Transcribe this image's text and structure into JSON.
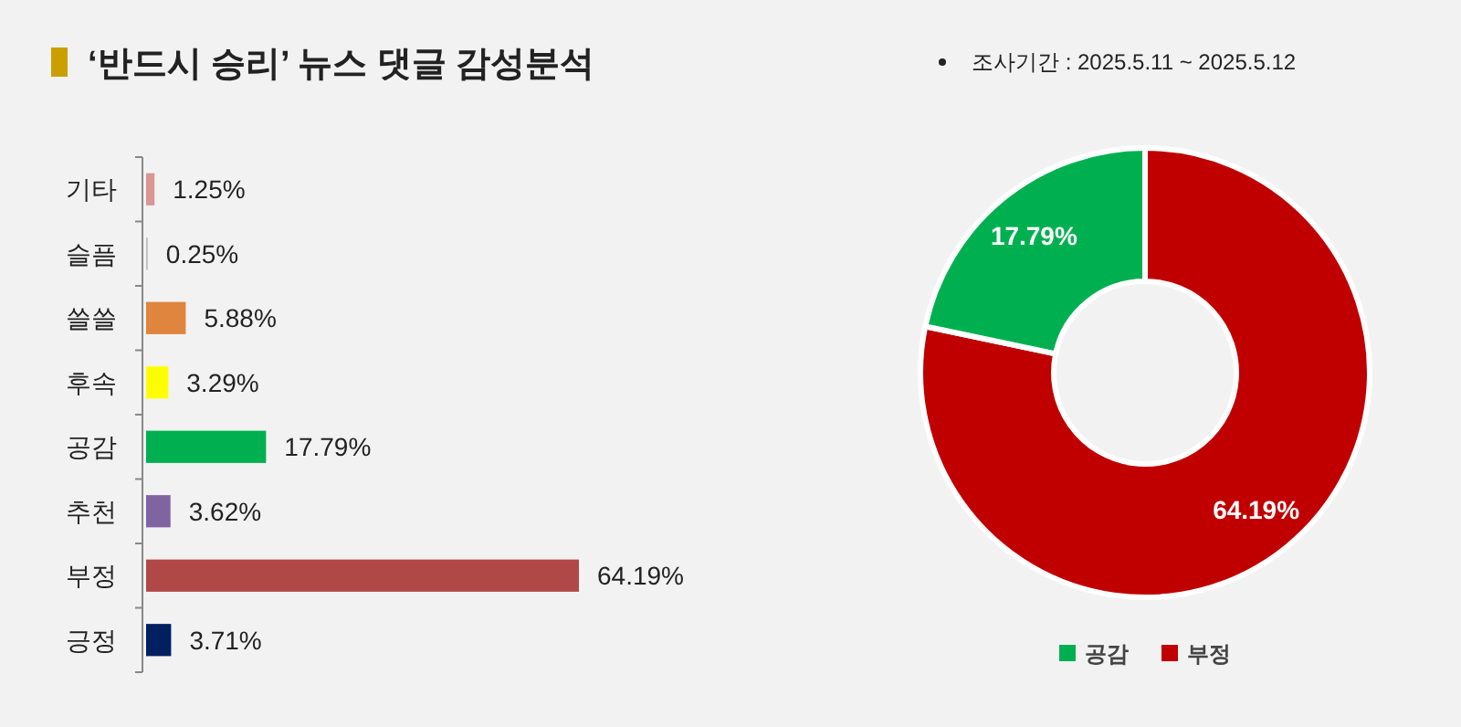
{
  "chart_data": [
    {
      "type": "bar",
      "orientation": "horizontal",
      "title": "‘반드시 승리’ 뉴스 댓글 감성분석",
      "annotations": [
        "조사기간 : 2025.5.11 ~ 2025.5.12"
      ],
      "categories": [
        "기타",
        "슬픔",
        "쓸쓸",
        "후속",
        "공감",
        "추천",
        "부정",
        "긍정"
      ],
      "values": [
        1.25,
        0.25,
        5.88,
        3.29,
        17.79,
        3.62,
        64.19,
        3.71
      ],
      "colors": [
        "#d99694",
        "#c0c0c0",
        "#e0853d",
        "#ffff00",
        "#00b050",
        "#8064a2",
        "#b04848",
        "#002060"
      ],
      "value_labels": [
        "1.25%",
        "0.25%",
        "5.88%",
        "3.29%",
        "17.79%",
        "3.62%",
        "64.19%",
        "3.71%"
      ]
    },
    {
      "type": "donut",
      "categories": [
        "공감",
        "부정"
      ],
      "values": [
        17.79,
        64.19
      ],
      "colors": [
        "#00b050",
        "#c00000"
      ],
      "value_labels": [
        "17.79%",
        "64.19%"
      ],
      "legend": "bottom"
    }
  ]
}
